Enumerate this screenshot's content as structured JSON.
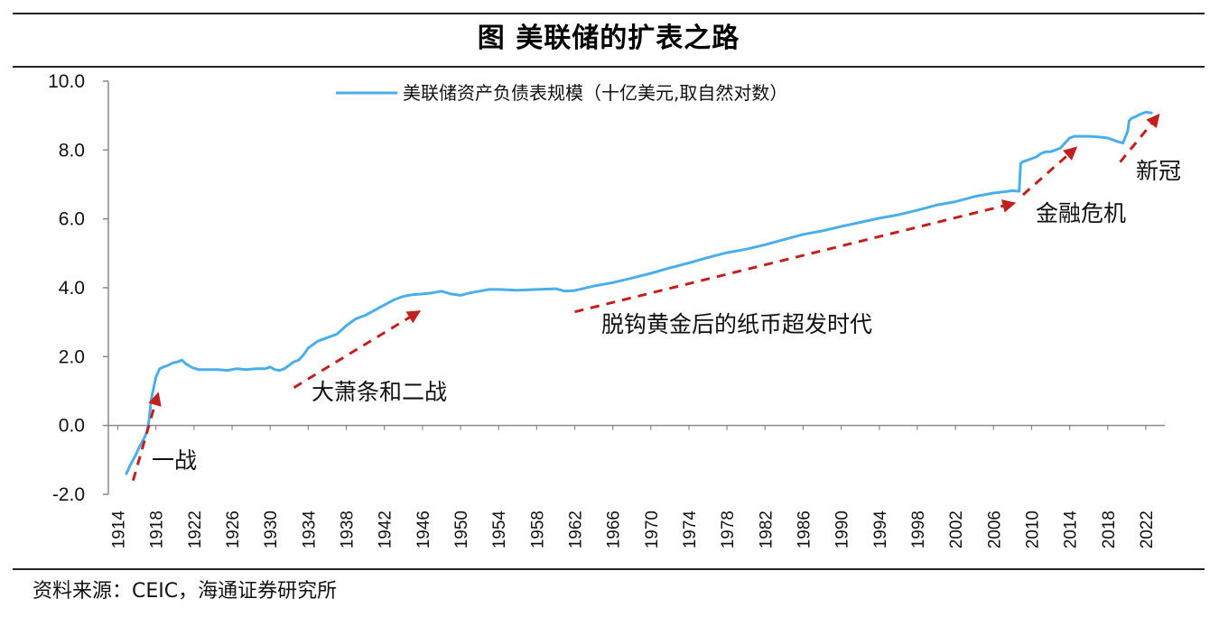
{
  "title": "图 美联储的扩表之路",
  "source": "资料来源：CEIC，海通证券研究所",
  "colors": {
    "series_line": "#4aaee8",
    "arrow": "#c0201e",
    "axis": "#888888",
    "rule": "#222222"
  },
  "chart_data": {
    "type": "line",
    "title": "",
    "xlabel": "",
    "ylabel": "",
    "xlim": [
      1914,
      2023
    ],
    "ylim": [
      -2.0,
      10.0
    ],
    "y_ticks": [
      "-2.0",
      "0.0",
      "2.0",
      "4.0",
      "6.0",
      "8.0",
      "10.0"
    ],
    "x_ticks": [
      "1914",
      "1918",
      "1922",
      "1926",
      "1930",
      "1934",
      "1938",
      "1942",
      "1946",
      "1950",
      "1954",
      "1958",
      "1962",
      "1966",
      "1970",
      "1974",
      "1978",
      "1982",
      "1986",
      "1990",
      "1994",
      "1998",
      "2002",
      "2006",
      "2010",
      "2014",
      "2018",
      "2022"
    ],
    "grid": false,
    "legend_position": "top",
    "series": [
      {
        "name": "美联储资产负债表规模（十亿美元,取自然对数）",
        "x": [
          1914.9,
          1915.3,
          1915.8,
          1916.3,
          1916.8,
          1917.1,
          1917.3,
          1917.5,
          1917.8,
          1918.0,
          1918.4,
          1918.8,
          1919.3,
          1919.8,
          1920.3,
          1920.7,
          1921.2,
          1921.8,
          1922.5,
          1923.5,
          1924.5,
          1925.5,
          1926.5,
          1927.5,
          1928.5,
          1929.5,
          1930.0,
          1930.5,
          1931.0,
          1931.5,
          1932.0,
          1932.5,
          1933.0,
          1933.5,
          1934.0,
          1935.0,
          1936.0,
          1937.0,
          1938.0,
          1939.0,
          1940.0,
          1941.0,
          1942.0,
          1943.0,
          1944.0,
          1945.0,
          1946.0,
          1947.0,
          1948.0,
          1949.0,
          1950.0,
          1951.0,
          1952.0,
          1953.0,
          1954.0,
          1956.0,
          1958.0,
          1960.0,
          1961.0,
          1962.0,
          1964.0,
          1966.0,
          1968.0,
          1970.0,
          1972.0,
          1974.0,
          1976.0,
          1978.0,
          1980.0,
          1982.0,
          1984.0,
          1986.0,
          1988.0,
          1990.0,
          1992.0,
          1994.0,
          1996.0,
          1998.0,
          2000.0,
          2002.0,
          2004.0,
          2006.0,
          2007.5,
          2008.0,
          2008.7,
          2008.85,
          2009.0,
          2009.5,
          2010.0,
          2010.5,
          2011.0,
          2011.5,
          2012.0,
          2012.5,
          2013.0,
          2013.5,
          2014.0,
          2014.5,
          2015.0,
          2016.0,
          2017.0,
          2018.0,
          2019.0,
          2019.6,
          2020.1,
          2020.25,
          2020.5,
          2021.0,
          2021.5,
          2022.0,
          2022.6
        ],
        "y": [
          -1.4,
          -1.15,
          -0.9,
          -0.6,
          -0.35,
          -0.15,
          0.2,
          0.75,
          1.15,
          1.4,
          1.65,
          1.7,
          1.75,
          1.82,
          1.85,
          1.9,
          1.78,
          1.68,
          1.62,
          1.62,
          1.62,
          1.6,
          1.65,
          1.62,
          1.65,
          1.65,
          1.7,
          1.62,
          1.6,
          1.65,
          1.75,
          1.85,
          1.9,
          2.05,
          2.25,
          2.45,
          2.55,
          2.65,
          2.9,
          3.1,
          3.2,
          3.35,
          3.5,
          3.65,
          3.75,
          3.8,
          3.82,
          3.85,
          3.9,
          3.82,
          3.78,
          3.85,
          3.9,
          3.95,
          3.95,
          3.93,
          3.95,
          3.97,
          3.9,
          3.92,
          4.05,
          4.15,
          4.28,
          4.42,
          4.58,
          4.72,
          4.88,
          5.02,
          5.12,
          5.25,
          5.4,
          5.55,
          5.65,
          5.78,
          5.9,
          6.02,
          6.12,
          6.25,
          6.4,
          6.5,
          6.65,
          6.75,
          6.8,
          6.82,
          6.8,
          7.6,
          7.65,
          7.7,
          7.75,
          7.8,
          7.9,
          7.95,
          7.95,
          8.0,
          8.05,
          8.2,
          8.35,
          8.4,
          8.4,
          8.4,
          8.38,
          8.35,
          8.25,
          8.2,
          8.55,
          8.85,
          8.92,
          8.98,
          9.05,
          9.1,
          9.08
        ]
      }
    ],
    "annotations": [
      {
        "text": "一战",
        "arrow_from": [
          1915.6,
          -1.6
        ],
        "arrow_to": [
          1918.2,
          0.9
        ]
      },
      {
        "text": "大萧条和二战",
        "arrow_from": [
          1932.5,
          1.1
        ],
        "arrow_to": [
          1945.6,
          3.3
        ]
      },
      {
        "text": "脱钩黄金后的纸币超发时代",
        "arrow_from": [
          1962.0,
          3.3
        ],
        "arrow_to": [
          2008.1,
          6.45
        ]
      },
      {
        "text": "金融危机",
        "arrow_from": [
          2009.1,
          6.7
        ],
        "arrow_to": [
          2014.6,
          8.05
        ]
      },
      {
        "text": "新冠",
        "arrow_from": [
          2019.3,
          7.65
        ],
        "arrow_to": [
          2023.3,
          9.0
        ]
      }
    ]
  }
}
